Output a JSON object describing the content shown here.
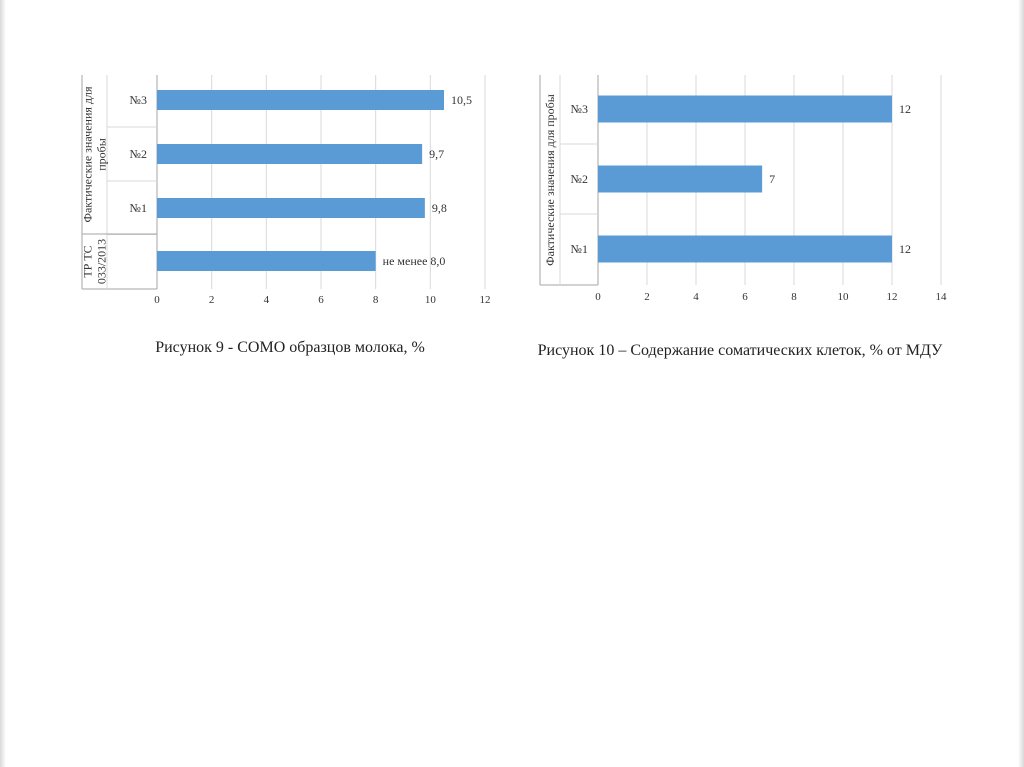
{
  "colors": {
    "bar": "#5b9bd5",
    "axis": "#a6a6a6",
    "grid": "#d9d9d9"
  },
  "chart_data": [
    {
      "type": "bar",
      "orientation": "horizontal",
      "categories": [
        "№3",
        "№2",
        "№1",
        "ТР ТС 033/2013"
      ],
      "category_groups": [
        {
          "label": "Фактические значения для пробы",
          "categories": [
            "№3",
            "№2",
            "№1"
          ]
        },
        {
          "label": "ТР ТС 033/2013",
          "categories": [
            "ТР ТС 033/2013"
          ]
        }
      ],
      "values": [
        10.5,
        9.7,
        9.8,
        8.0
      ],
      "data_labels": [
        "10,5",
        "9,7",
        "9,8",
        "не менее 8,0"
      ],
      "xlim": [
        0,
        12
      ],
      "xticks": [
        "0",
        "2",
        "4",
        "6",
        "8",
        "10",
        "12"
      ],
      "grid": true,
      "caption": "Рисунок 9 - СОМО образцов молока, %"
    },
    {
      "type": "bar",
      "orientation": "horizontal",
      "categories": [
        "№3",
        "№2",
        "№1"
      ],
      "category_groups": [
        {
          "label": "Фактические значения для пробы",
          "categories": [
            "№3",
            "№2",
            "№1"
          ]
        }
      ],
      "values": [
        12,
        6.7,
        12
      ],
      "data_labels": [
        "12",
        "7",
        "12"
      ],
      "xlim": [
        0,
        14
      ],
      "xticks": [
        "0",
        "2",
        "4",
        "6",
        "8",
        "10",
        "12",
        "14"
      ],
      "grid": true,
      "caption": "Рисунок 10 – Содержание соматических клеток, % от МДУ"
    }
  ]
}
